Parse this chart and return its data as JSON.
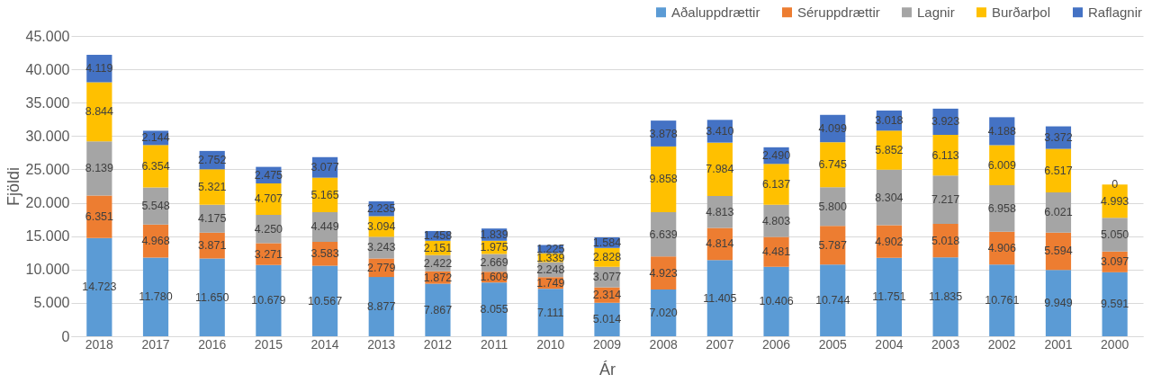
{
  "chart_data": {
    "type": "bar",
    "stacked": true,
    "xlabel": "Ár",
    "ylabel": "Fjöldi",
    "categories": [
      "2018",
      "2017",
      "2016",
      "2015",
      "2014",
      "2013",
      "2012",
      "2011",
      "2010",
      "2009",
      "2008",
      "2007",
      "2006",
      "2005",
      "2004",
      "2003",
      "2002",
      "2001",
      "2000"
    ],
    "series": [
      {
        "name": "Aðaluppdrættir",
        "color": "#5b9bd5",
        "values": [
          14723,
          11780,
          11650,
          10679,
          10567,
          8877,
          7867,
          8055,
          7111,
          5014,
          7020,
          11405,
          10406,
          10744,
          11751,
          11835,
          10761,
          9949,
          9591
        ],
        "value_labels": [
          "14.723",
          "11.780",
          "11.650",
          "10.679",
          "10.567",
          "8.877",
          "7.867",
          "8.055",
          "7.111",
          "5.014",
          "7.020",
          "11.405",
          "10.406",
          "10.744",
          "11.751",
          "11.835",
          "10.761",
          "9.949",
          "9.591"
        ]
      },
      {
        "name": "Séruppdrættir",
        "color": "#ed7d31",
        "values": [
          6351,
          4968,
          3871,
          3271,
          3583,
          2779,
          1872,
          1609,
          1749,
          2314,
          4923,
          4814,
          4481,
          5787,
          4902,
          5018,
          4906,
          5594,
          3097
        ],
        "value_labels": [
          "6.351",
          "4.968",
          "3.871",
          "3.271",
          "3.583",
          "2.779",
          "1.872",
          "1.609",
          "1.749",
          "2.314",
          "4.923",
          "4.814",
          "4.481",
          "5.787",
          "4.902",
          "5.018",
          "4.906",
          "5.594",
          "3.097"
        ]
      },
      {
        "name": "Lagnir",
        "color": "#a5a5a5",
        "values": [
          8139,
          5548,
          4175,
          4250,
          4449,
          3243,
          2422,
          2669,
          2248,
          3077,
          6639,
          4813,
          4803,
          5800,
          8304,
          7217,
          6958,
          6021,
          5050
        ],
        "value_labels": [
          "8.139",
          "5.548",
          "4.175",
          "4.250",
          "4.449",
          "3.243",
          "2.422",
          "2.669",
          "2.248",
          "3.077",
          "6.639",
          "4.813",
          "4.803",
          "5.800",
          "8.304",
          "7.217",
          "6.958",
          "6.021",
          "5.050"
        ]
      },
      {
        "name": "Burðarþol",
        "color": "#ffc000",
        "values": [
          8844,
          6354,
          5321,
          4707,
          5165,
          3094,
          2151,
          1975,
          1339,
          2828,
          9858,
          7984,
          6137,
          6745,
          5852,
          6113,
          6009,
          6517,
          4993
        ],
        "value_labels": [
          "8.844",
          "6.354",
          "5.321",
          "4.707",
          "5.165",
          "3.094",
          "2.151",
          "1.975",
          "1.339",
          "2.828",
          "9.858",
          "7.984",
          "6.137",
          "6.745",
          "5.852",
          "6.113",
          "6.009",
          "6.517",
          "4.993"
        ]
      },
      {
        "name": "Raflagnir",
        "color": "#4472c4",
        "values": [
          4119,
          2144,
          2752,
          2475,
          3077,
          2235,
          1458,
          1839,
          1225,
          1584,
          3878,
          3410,
          2490,
          4099,
          3018,
          3923,
          4188,
          3372,
          0
        ],
        "value_labels": [
          "4.119",
          "2.144",
          "2.752",
          "2.475",
          "3.077",
          "2.235",
          "1.458",
          "1.839",
          "1.225",
          "1.584",
          "3.878",
          "3.410",
          "2.490",
          "4.099",
          "3.018",
          "3.923",
          "4.188",
          "3.372",
          "0"
        ]
      }
    ],
    "ylim": [
      0,
      45000
    ],
    "yticks": [
      {
        "value": 0,
        "label": "0"
      },
      {
        "value": 5000,
        "label": "5.000"
      },
      {
        "value": 10000,
        "label": "10.000"
      },
      {
        "value": 15000,
        "label": "15.000"
      },
      {
        "value": 20000,
        "label": "20.000"
      },
      {
        "value": 25000,
        "label": "25.000"
      },
      {
        "value": 30000,
        "label": "30.000"
      },
      {
        "value": 35000,
        "label": "35.000"
      },
      {
        "value": 40000,
        "label": "40.000"
      },
      {
        "value": 45000,
        "label": "45.000"
      }
    ],
    "grid": "y",
    "legend": "top right"
  }
}
